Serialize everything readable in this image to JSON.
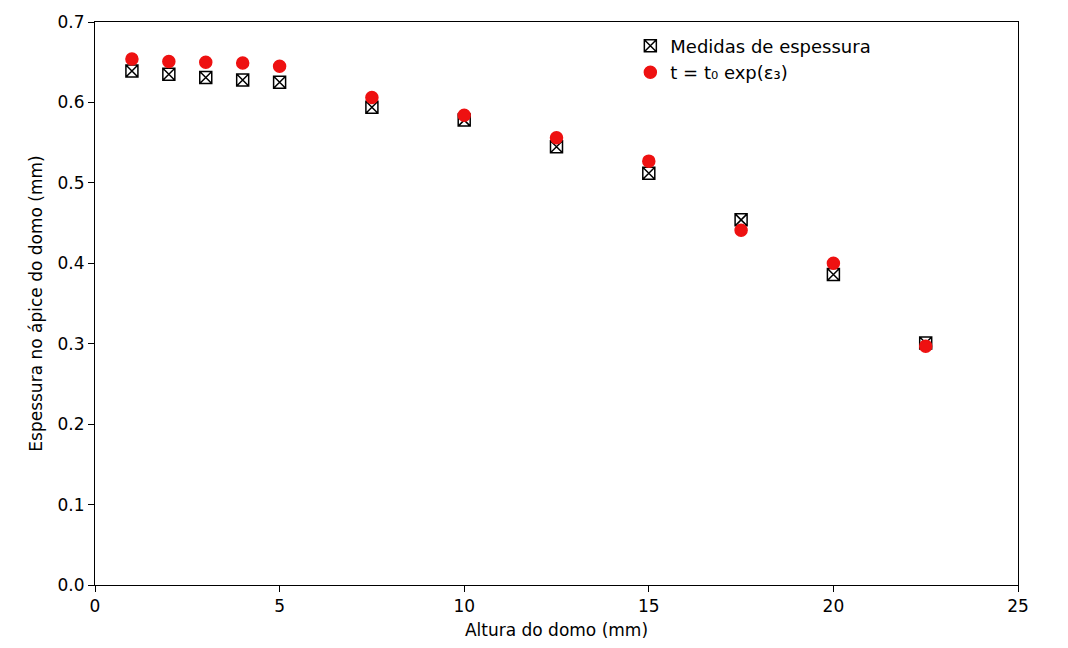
{
  "chart_data": {
    "type": "scatter",
    "x_label": "Altura do domo (mm)",
    "y_label": "Espessura no ápice do domo (mm)",
    "xlim": [
      0,
      25
    ],
    "xticks": [
      0,
      5,
      10,
      15,
      20,
      25
    ],
    "ylim": [
      0,
      0.7
    ],
    "yticks": [
      {
        "value": 0,
        "label": "0.0"
      },
      0.1,
      0.2,
      0.3,
      0.4,
      0.5,
      0.6,
      0.7
    ],
    "legend": "upper right",
    "grid": false,
    "series": [
      {
        "name": "Medidas de espessura",
        "color": "#000000",
        "marker": "square-x-open",
        "x": [
          1,
          2,
          3,
          4,
          5,
          7.5,
          10,
          12.5,
          15,
          17.5,
          20,
          22.5
        ],
        "values": [
          0.639,
          0.635,
          0.631,
          0.628,
          0.625,
          0.594,
          0.578,
          0.545,
          0.512,
          0.454,
          0.386,
          0.301
        ]
      },
      {
        "name": "t = t₀ exp(ε₃)",
        "color": "#ee1111",
        "marker": "circle",
        "x": [
          1,
          2,
          3,
          4,
          5,
          7.5,
          10,
          12.5,
          15,
          17.5,
          20,
          22.5
        ],
        "values": [
          0.654,
          0.651,
          0.65,
          0.649,
          0.645,
          0.606,
          0.584,
          0.556,
          0.527,
          0.441,
          0.4,
          0.297
        ]
      }
    ]
  }
}
